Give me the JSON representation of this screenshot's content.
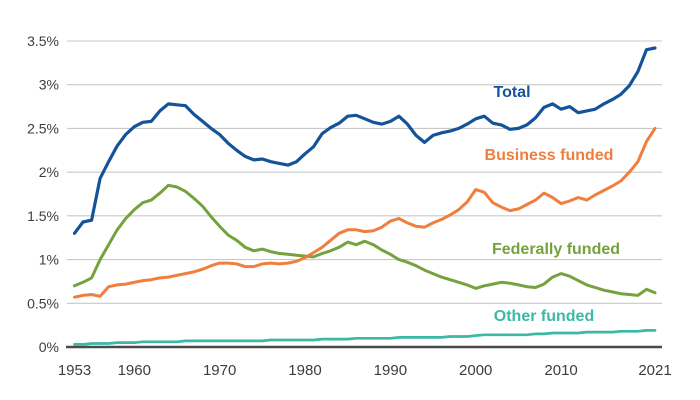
{
  "chart_data": {
    "type": "line",
    "title": "",
    "xlabel": "",
    "ylabel": "",
    "xlim": [
      1953,
      2021
    ],
    "ylim": [
      0,
      3.5
    ],
    "grid": "horizontal",
    "legend_position": "inline-labels-right",
    "grid_color": "#c8c8c8",
    "axis_color": "#4a4a4c",
    "tick_label_color": "#3d3d40",
    "x_ticks": {
      "values": [
        1953,
        1960,
        1970,
        1980,
        1990,
        2000,
        2010,
        2021
      ],
      "labels": [
        "1953",
        "1960",
        "1970",
        "1980",
        "1990",
        "2000",
        "2010",
        "2021"
      ]
    },
    "y_ticks": {
      "values": [
        0,
        0.5,
        1,
        1.5,
        2,
        2.5,
        3,
        3.5
      ],
      "labels": [
        "0%",
        "0.5%",
        "1%",
        "1.5%",
        "2%",
        "2.5%",
        "3%",
        "3.5%"
      ]
    },
    "x": [
      1953,
      1954,
      1955,
      1956,
      1957,
      1958,
      1959,
      1960,
      1961,
      1962,
      1963,
      1964,
      1965,
      1966,
      1967,
      1968,
      1969,
      1970,
      1971,
      1972,
      1973,
      1974,
      1975,
      1976,
      1977,
      1978,
      1979,
      1980,
      1981,
      1982,
      1983,
      1984,
      1985,
      1986,
      1987,
      1988,
      1989,
      1990,
      1991,
      1992,
      1993,
      1994,
      1995,
      1996,
      1997,
      1998,
      1999,
      2000,
      2001,
      2002,
      2003,
      2004,
      2005,
      2006,
      2007,
      2008,
      2009,
      2010,
      2011,
      2012,
      2013,
      2014,
      2015,
      2016,
      2017,
      2018,
      2019,
      2020,
      2021
    ],
    "series": [
      {
        "name": "Total",
        "color": "#14539a",
        "values": [
          1.3,
          1.43,
          1.45,
          1.93,
          2.12,
          2.3,
          2.43,
          2.52,
          2.57,
          2.58,
          2.7,
          2.78,
          2.77,
          2.76,
          2.66,
          2.58,
          2.5,
          2.43,
          2.33,
          2.25,
          2.18,
          2.14,
          2.15,
          2.12,
          2.1,
          2.08,
          2.12,
          2.21,
          2.29,
          2.44,
          2.51,
          2.56,
          2.64,
          2.65,
          2.61,
          2.57,
          2.55,
          2.58,
          2.64,
          2.55,
          2.42,
          2.34,
          2.42,
          2.45,
          2.47,
          2.5,
          2.55,
          2.61,
          2.64,
          2.56,
          2.54,
          2.49,
          2.5,
          2.54,
          2.62,
          2.74,
          2.78,
          2.72,
          2.75,
          2.68,
          2.7,
          2.72,
          2.78,
          2.83,
          2.89,
          2.99,
          3.15,
          3.4,
          3.42
        ]
      },
      {
        "name": "Business funded",
        "color": "#f07e3d",
        "values": [
          0.57,
          0.59,
          0.6,
          0.58,
          0.69,
          0.71,
          0.72,
          0.74,
          0.76,
          0.77,
          0.79,
          0.8,
          0.82,
          0.84,
          0.86,
          0.89,
          0.93,
          0.96,
          0.96,
          0.95,
          0.92,
          0.92,
          0.95,
          0.96,
          0.95,
          0.96,
          0.98,
          1.02,
          1.08,
          1.14,
          1.22,
          1.3,
          1.34,
          1.34,
          1.32,
          1.33,
          1.37,
          1.44,
          1.47,
          1.42,
          1.38,
          1.37,
          1.42,
          1.46,
          1.51,
          1.57,
          1.66,
          1.8,
          1.77,
          1.65,
          1.6,
          1.56,
          1.58,
          1.63,
          1.68,
          1.76,
          1.71,
          1.64,
          1.67,
          1.71,
          1.68,
          1.74,
          1.79,
          1.84,
          1.9,
          2.0,
          2.12,
          2.35,
          2.5
        ]
      },
      {
        "name": "Federally funded",
        "color": "#75a23d",
        "values": [
          0.7,
          0.74,
          0.79,
          1.0,
          1.17,
          1.34,
          1.47,
          1.57,
          1.65,
          1.68,
          1.76,
          1.85,
          1.83,
          1.78,
          1.7,
          1.61,
          1.49,
          1.38,
          1.28,
          1.22,
          1.14,
          1.1,
          1.12,
          1.09,
          1.07,
          1.06,
          1.05,
          1.04,
          1.03,
          1.07,
          1.1,
          1.14,
          1.2,
          1.17,
          1.21,
          1.17,
          1.11,
          1.06,
          1.0,
          0.97,
          0.93,
          0.88,
          0.84,
          0.8,
          0.77,
          0.74,
          0.71,
          0.67,
          0.7,
          0.72,
          0.74,
          0.73,
          0.71,
          0.69,
          0.68,
          0.72,
          0.8,
          0.84,
          0.81,
          0.76,
          0.71,
          0.68,
          0.65,
          0.63,
          0.61,
          0.6,
          0.59,
          0.66,
          0.62
        ]
      },
      {
        "name": "Other funded",
        "color": "#3cb8a6",
        "values": [
          0.03,
          0.03,
          0.04,
          0.04,
          0.04,
          0.05,
          0.05,
          0.05,
          0.06,
          0.06,
          0.06,
          0.06,
          0.06,
          0.07,
          0.07,
          0.07,
          0.07,
          0.07,
          0.07,
          0.07,
          0.07,
          0.07,
          0.07,
          0.08,
          0.08,
          0.08,
          0.08,
          0.08,
          0.08,
          0.09,
          0.09,
          0.09,
          0.09,
          0.1,
          0.1,
          0.1,
          0.1,
          0.1,
          0.11,
          0.11,
          0.11,
          0.11,
          0.11,
          0.11,
          0.12,
          0.12,
          0.12,
          0.13,
          0.14,
          0.14,
          0.14,
          0.14,
          0.14,
          0.14,
          0.15,
          0.15,
          0.16,
          0.16,
          0.16,
          0.16,
          0.17,
          0.17,
          0.17,
          0.17,
          0.18,
          0.18,
          0.18,
          0.19,
          0.19
        ]
      }
    ]
  }
}
